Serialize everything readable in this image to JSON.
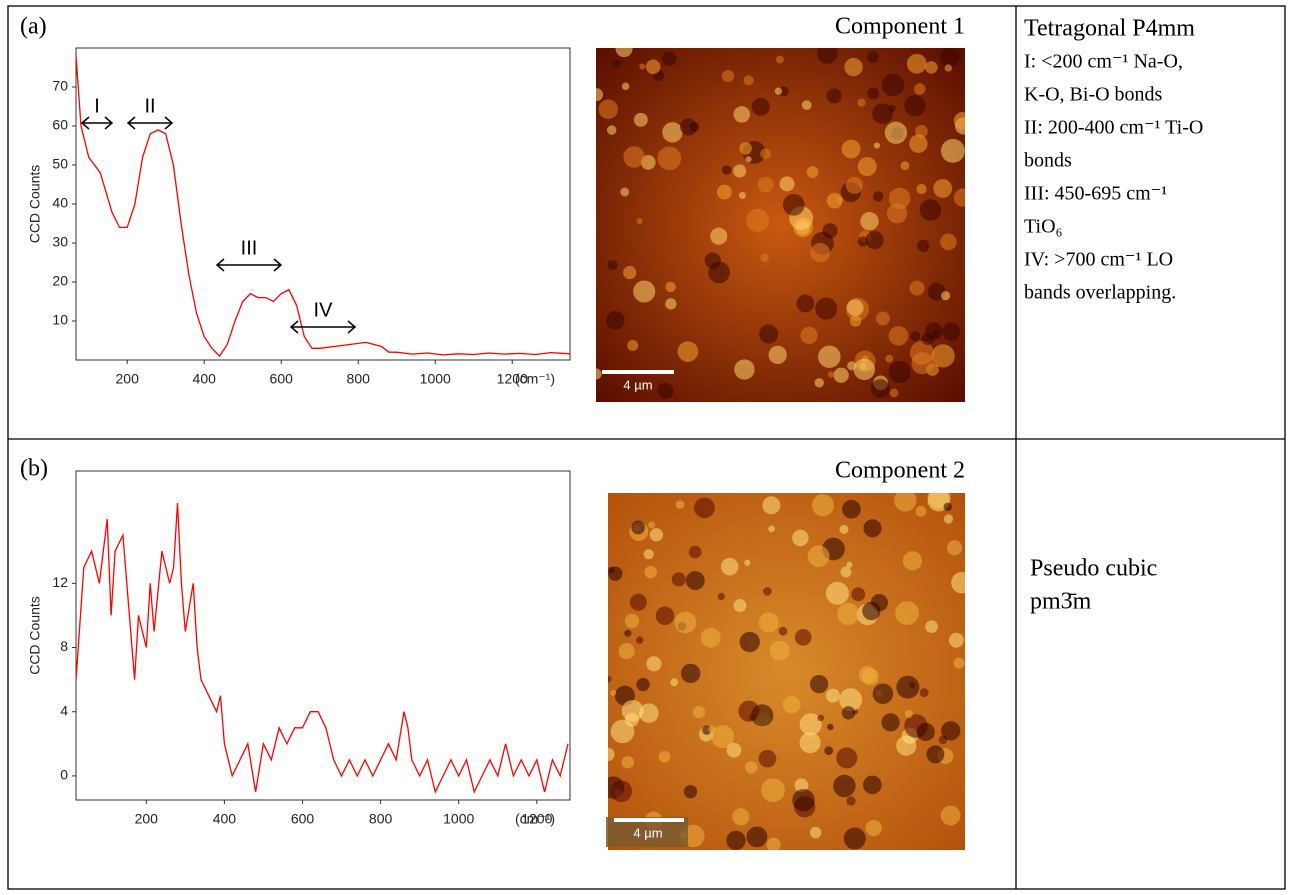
{
  "panels": [
    {
      "label": "(a)",
      "component": "Component 1",
      "scale_bar": "4 µm",
      "chart": {
        "type": "line",
        "y_label": "CCD Counts",
        "x_unit": "(cm⁻¹)",
        "color": "#ff0000",
        "xlim": [
          67,
          1350
        ],
        "ylim": [
          0,
          80
        ],
        "xticks": [
          200,
          400,
          600,
          800,
          1000,
          1200
        ],
        "yticks": [
          10,
          20,
          30,
          40,
          50,
          60,
          70
        ],
        "annotations": [
          "I",
          "II",
          "III",
          "IV"
        ],
        "x": [
          67,
          80,
          100,
          130,
          160,
          180,
          200,
          220,
          240,
          260,
          280,
          300,
          320,
          340,
          360,
          380,
          400,
          420,
          440,
          460,
          480,
          500,
          520,
          540,
          560,
          580,
          600,
          620,
          640,
          660,
          680,
          700,
          740,
          780,
          820,
          860,
          880,
          900,
          940,
          980,
          1020,
          1060,
          1100,
          1140,
          1180,
          1220,
          1260,
          1300,
          1350
        ],
        "values": [
          78,
          60,
          52,
          48,
          38,
          34,
          34,
          40,
          52,
          58,
          59,
          58,
          50,
          35,
          22,
          12,
          6,
          3,
          1,
          4,
          10,
          15,
          17,
          16,
          16,
          15,
          17,
          18,
          14,
          6,
          3,
          3,
          3.5,
          4,
          4.5,
          3.5,
          2,
          2,
          1.5,
          1.8,
          1.3,
          1.6,
          1.4,
          1.8,
          1.5,
          1.7,
          1.4,
          1.9,
          1.6
        ]
      }
    },
    {
      "label": "(b)",
      "component": "Component 2",
      "scale_bar": "4 µm",
      "chart": {
        "type": "line",
        "y_label": "CCD Counts",
        "x_unit": "(cm⁻¹)",
        "color": "#ff0000",
        "xlim": [
          20,
          1285
        ],
        "ylim": [
          -1.5,
          19
        ],
        "xticks": [
          200,
          400,
          600,
          800,
          1000,
          1200
        ],
        "yticks": [
          0,
          4,
          8,
          12
        ],
        "x": [
          20,
          40,
          60,
          80,
          100,
          110,
          120,
          140,
          160,
          170,
          180,
          200,
          210,
          220,
          240,
          260,
          270,
          280,
          290,
          300,
          320,
          330,
          340,
          360,
          380,
          390,
          400,
          420,
          440,
          460,
          480,
          500,
          520,
          540,
          560,
          580,
          600,
          620,
          640,
          660,
          680,
          700,
          720,
          740,
          760,
          780,
          800,
          820,
          840,
          860,
          870,
          880,
          900,
          920,
          940,
          960,
          980,
          1000,
          1020,
          1040,
          1060,
          1080,
          1100,
          1120,
          1140,
          1160,
          1180,
          1200,
          1220,
          1240,
          1260,
          1280
        ],
        "values": [
          6,
          13,
          14,
          12,
          16,
          10,
          14,
          15,
          9,
          6,
          10,
          8,
          12,
          9,
          14,
          12,
          13,
          17,
          12,
          9,
          12,
          8,
          6,
          5,
          4,
          5,
          2,
          0,
          1,
          2,
          -1,
          2,
          1,
          3,
          2,
          3,
          3,
          4,
          4,
          3,
          1,
          0,
          1,
          0,
          1,
          0,
          1,
          2,
          1,
          4,
          3,
          1,
          0,
          1,
          -1,
          0,
          1,
          0,
          1,
          -1,
          0,
          1,
          0,
          2,
          0,
          1,
          0,
          1,
          -1,
          1,
          0,
          2
        ]
      }
    }
  ],
  "descriptions": [
    [
      "Tetragonal P4mm",
      "I: <200 cm⁻¹ Na-O,",
      "K-O, Bi-O bonds",
      "II: 200-400 cm⁻¹ Ti-O",
      "bonds",
      "III: 450-695 cm⁻¹",
      "TiO₆",
      "IV:  >700 cm⁻¹ LO",
      "bands overlapping."
    ],
    [
      "Pseudo cubic",
      "pm3̄m"
    ]
  ]
}
